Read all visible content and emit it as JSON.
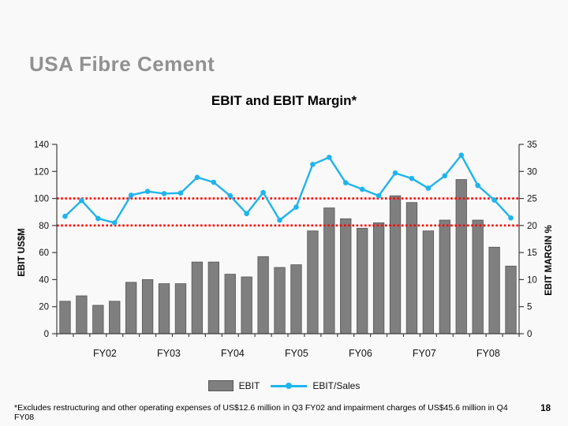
{
  "slide": {
    "title": "USA Fibre Cement",
    "page_number": "18",
    "footnote": "*Excludes restructuring and other operating expenses of US$12.6 million in Q3 FY02 and impairment charges of US$45.6 million in Q4 FY08"
  },
  "colors": {
    "bar": "#7f7f7f",
    "bar_border": "#565656",
    "line": "#1fb4ec",
    "reference": "#ff0000",
    "axis": "#3f3f3f",
    "title_gray": "#919191"
  },
  "chart_data": {
    "type": "bar",
    "title": "EBIT and EBIT Margin*",
    "categories": [
      "FY02",
      "FY03",
      "FY04",
      "FY05",
      "FY06",
      "FY07",
      "FY08"
    ],
    "points_per_category": 4,
    "series": [
      {
        "name": "EBIT",
        "type": "bar",
        "axis": "left",
        "values": [
          24,
          28,
          21,
          24,
          38,
          40,
          37,
          37,
          53,
          53,
          44,
          42,
          57,
          49,
          51,
          76,
          93,
          85,
          78,
          82,
          102,
          97,
          76,
          84,
          114,
          84,
          64,
          50
        ]
      },
      {
        "name": "EBIT/Sales",
        "type": "line",
        "axis": "right",
        "values": [
          21.7,
          24.6,
          21.3,
          20.5,
          25.6,
          26.3,
          25.9,
          26.0,
          28.9,
          28.0,
          25.5,
          22.2,
          26.1,
          21.0,
          23.4,
          31.3,
          32.6,
          27.9,
          26.7,
          25.5,
          29.7,
          28.7,
          26.9,
          29.2,
          33.0,
          27.4,
          24.7,
          21.4
        ]
      }
    ],
    "reference_lines": [
      {
        "axis": "right",
        "value": 25,
        "style": "dotted"
      },
      {
        "axis": "right",
        "value": 20,
        "style": "dotted"
      }
    ],
    "left_axis": {
      "label": "EBIT US$M",
      "min": 0,
      "max": 140,
      "ticks": [
        0,
        20,
        40,
        60,
        80,
        100,
        120,
        140
      ]
    },
    "right_axis": {
      "label": "EBIT MARGIN %",
      "min": 0,
      "max": 35,
      "ticks": [
        0,
        5,
        10,
        15,
        20,
        25,
        30,
        35
      ]
    },
    "legend_position": "bottom",
    "grid": false
  }
}
